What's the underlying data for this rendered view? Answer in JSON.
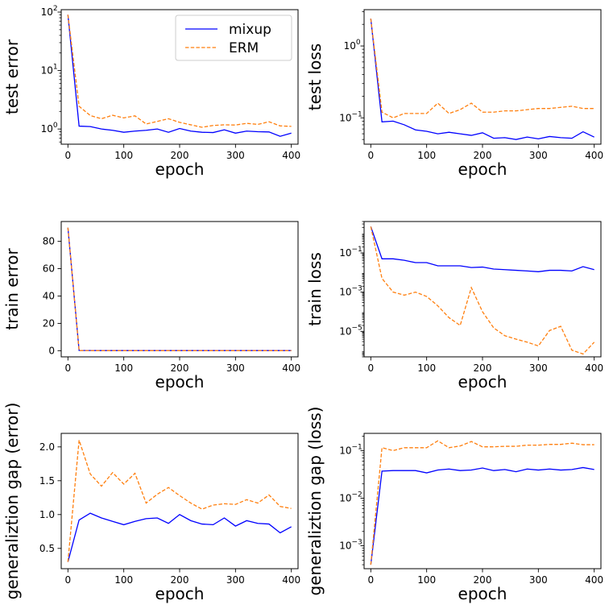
{
  "colors": {
    "mixup": "#0000ff",
    "erm": "#ff7f0e",
    "axis": "#000000"
  },
  "legend": {
    "mixup": "mixup",
    "erm": "ERM",
    "placement": "top-right",
    "panel": 0
  },
  "chart_data": [
    {
      "type": "line",
      "ylabel": "test error",
      "xlabel": "epoch",
      "yscale": "log",
      "ylim": [
        0.55,
        110
      ],
      "xlim": [
        -12,
        412
      ],
      "x_ticks": [
        0,
        100,
        200,
        300,
        400
      ],
      "y_ticks": [
        {
          "value": 1,
          "label": "10",
          "exp": "0"
        },
        {
          "value": 10,
          "label": "10",
          "exp": "1"
        },
        {
          "value": 100,
          "label": "10",
          "exp": "2"
        }
      ],
      "x": [
        0,
        20,
        40,
        60,
        80,
        100,
        120,
        140,
        160,
        180,
        200,
        220,
        240,
        260,
        280,
        300,
        320,
        340,
        360,
        380,
        400
      ],
      "series": [
        {
          "name": "mixup",
          "values": [
            90,
            1.12,
            1.1,
            1.0,
            0.95,
            0.88,
            0.92,
            0.95,
            1.0,
            0.88,
            1.02,
            0.92,
            0.88,
            0.87,
            0.97,
            0.85,
            0.92,
            0.9,
            0.89,
            0.75,
            0.85
          ]
        },
        {
          "name": "ERM",
          "values": [
            90,
            2.45,
            1.7,
            1.5,
            1.72,
            1.55,
            1.68,
            1.22,
            1.35,
            1.5,
            1.3,
            1.18,
            1.07,
            1.15,
            1.18,
            1.17,
            1.25,
            1.2,
            1.33,
            1.13,
            1.11
          ]
        }
      ]
    },
    {
      "type": "line",
      "ylabel": "test loss",
      "xlabel": "epoch",
      "yscale": "log",
      "ylim": [
        0.043,
        3.2
      ],
      "xlim": [
        -12,
        412
      ],
      "x_ticks": [
        0,
        100,
        200,
        300,
        400
      ],
      "y_ticks": [
        {
          "value": 0.1,
          "label": "10",
          "exp": "−1"
        },
        {
          "value": 1,
          "label": "10",
          "exp": "0"
        }
      ],
      "x": [
        0,
        20,
        40,
        60,
        80,
        100,
        120,
        140,
        160,
        180,
        200,
        220,
        240,
        260,
        280,
        300,
        320,
        340,
        360,
        380,
        400
      ],
      "series": [
        {
          "name": "mixup",
          "values": [
            2.4,
            0.088,
            0.09,
            0.08,
            0.068,
            0.065,
            0.06,
            0.063,
            0.06,
            0.057,
            0.062,
            0.052,
            0.053,
            0.05,
            0.054,
            0.051,
            0.055,
            0.053,
            0.052,
            0.064,
            0.054
          ]
        },
        {
          "name": "ERM",
          "values": [
            2.4,
            0.12,
            0.1,
            0.115,
            0.115,
            0.115,
            0.16,
            0.115,
            0.13,
            0.16,
            0.12,
            0.12,
            0.125,
            0.125,
            0.13,
            0.135,
            0.135,
            0.14,
            0.145,
            0.135,
            0.135
          ]
        }
      ]
    },
    {
      "type": "line",
      "ylabel": "train error",
      "xlabel": "epoch",
      "yscale": "linear",
      "ylim": [
        -4.5,
        94.5
      ],
      "xlim": [
        -12,
        412
      ],
      "x_ticks": [
        0,
        100,
        200,
        300,
        400
      ],
      "y_ticks": [
        {
          "value": 0,
          "label": "0"
        },
        {
          "value": 20,
          "label": "20"
        },
        {
          "value": 40,
          "label": "40"
        },
        {
          "value": 60,
          "label": "60"
        },
        {
          "value": 80,
          "label": "80"
        }
      ],
      "x": [
        0,
        20,
        40,
        60,
        80,
        100,
        120,
        140,
        160,
        180,
        200,
        220,
        240,
        260,
        280,
        300,
        320,
        340,
        360,
        380,
        400
      ],
      "series": [
        {
          "name": "mixup",
          "values": [
            90,
            0.2,
            0.15,
            0.1,
            0.1,
            0.1,
            0.1,
            0.1,
            0.1,
            0.1,
            0.1,
            0.1,
            0.1,
            0.1,
            0.1,
            0.1,
            0.1,
            0.1,
            0.1,
            0.1,
            0.1
          ]
        },
        {
          "name": "ERM",
          "values": [
            90,
            0.1,
            0.05,
            0.02,
            0.02,
            0.02,
            0.02,
            0.02,
            0.02,
            0.02,
            0.02,
            0.02,
            0.02,
            0.02,
            0.02,
            0.02,
            0.02,
            0.02,
            0.02,
            0.02,
            0.02
          ]
        }
      ]
    },
    {
      "type": "line",
      "ylabel": "train loss",
      "xlabel": "epoch",
      "yscale": "log",
      "ylim": [
        5e-07,
        4
      ],
      "xlim": [
        -12,
        412
      ],
      "x_ticks": [
        0,
        100,
        200,
        300,
        400
      ],
      "y_ticks": [
        {
          "value": 1e-05,
          "label": "10",
          "exp": "−5"
        },
        {
          "value": 0.001,
          "label": "10",
          "exp": "−3"
        },
        {
          "value": 0.1,
          "label": "10",
          "exp": "−1"
        }
      ],
      "x": [
        0,
        20,
        40,
        60,
        80,
        100,
        120,
        140,
        160,
        180,
        200,
        220,
        240,
        260,
        280,
        300,
        320,
        340,
        360,
        380,
        400
      ],
      "series": [
        {
          "name": "mixup",
          "values": [
            2.2,
            0.05,
            0.05,
            0.042,
            0.032,
            0.032,
            0.022,
            0.022,
            0.022,
            0.018,
            0.019,
            0.015,
            0.014,
            0.013,
            0.012,
            0.011,
            0.013,
            0.013,
            0.012,
            0.02,
            0.014
          ]
        },
        {
          "name": "ERM",
          "values": [
            2.2,
            0.005,
            0.001,
            0.0007,
            0.001,
            0.0006,
            0.0002,
            5e-05,
            2e-05,
            0.0017,
            0.0001,
            1.5e-05,
            6e-06,
            4e-06,
            2.8e-06,
            1.8e-06,
            1.1e-05,
            1.8e-05,
            1.1e-06,
            7e-07,
            2.8e-06
          ]
        }
      ]
    },
    {
      "type": "line",
      "ylabel": "generaliztion gap (error)",
      "xlabel": "epoch",
      "yscale": "linear",
      "ylim": [
        0.2,
        2.2
      ],
      "xlim": [
        -12,
        412
      ],
      "x_ticks": [
        0,
        100,
        200,
        300,
        400
      ],
      "y_ticks": [
        {
          "value": 0.5,
          "label": "0.5"
        },
        {
          "value": 1.0,
          "label": "1.0"
        },
        {
          "value": 1.5,
          "label": "1.5"
        },
        {
          "value": 2.0,
          "label": "2.0"
        }
      ],
      "x": [
        0,
        20,
        40,
        60,
        80,
        100,
        120,
        140,
        160,
        180,
        200,
        220,
        240,
        260,
        280,
        300,
        320,
        340,
        360,
        380,
        400
      ],
      "series": [
        {
          "name": "mixup",
          "values": [
            0.3,
            0.92,
            1.02,
            0.95,
            0.9,
            0.85,
            0.9,
            0.94,
            0.95,
            0.87,
            1.0,
            0.91,
            0.86,
            0.85,
            0.95,
            0.83,
            0.91,
            0.87,
            0.86,
            0.73,
            0.82
          ]
        },
        {
          "name": "ERM",
          "values": [
            0.3,
            2.1,
            1.6,
            1.42,
            1.62,
            1.45,
            1.61,
            1.17,
            1.3,
            1.4,
            1.28,
            1.17,
            1.08,
            1.14,
            1.16,
            1.15,
            1.22,
            1.17,
            1.29,
            1.12,
            1.09
          ]
        }
      ]
    },
    {
      "type": "line",
      "ylabel": "generaliztion gap (loss)",
      "xlabel": "epoch",
      "yscale": "log",
      "ylim": [
        0.00033,
        0.23
      ],
      "xlim": [
        -12,
        412
      ],
      "x_ticks": [
        0,
        100,
        200,
        300,
        400
      ],
      "y_ticks": [
        {
          "value": 0.001,
          "label": "10",
          "exp": "−3"
        },
        {
          "value": 0.01,
          "label": "10",
          "exp": "−2"
        },
        {
          "value": 0.1,
          "label": "10",
          "exp": "−1"
        }
      ],
      "x": [
        0,
        20,
        40,
        60,
        80,
        100,
        120,
        140,
        160,
        180,
        200,
        220,
        240,
        260,
        280,
        300,
        320,
        340,
        360,
        380,
        400
      ],
      "series": [
        {
          "name": "mixup",
          "values": [
            0.0004,
            0.037,
            0.038,
            0.038,
            0.038,
            0.034,
            0.039,
            0.041,
            0.038,
            0.039,
            0.043,
            0.038,
            0.04,
            0.036,
            0.041,
            0.039,
            0.041,
            0.039,
            0.04,
            0.044,
            0.04
          ]
        },
        {
          "name": "ERM",
          "values": [
            0.0004,
            0.115,
            0.1,
            0.115,
            0.115,
            0.115,
            0.16,
            0.115,
            0.125,
            0.155,
            0.12,
            0.12,
            0.123,
            0.123,
            0.13,
            0.13,
            0.135,
            0.135,
            0.143,
            0.133,
            0.133
          ]
        }
      ]
    }
  ]
}
